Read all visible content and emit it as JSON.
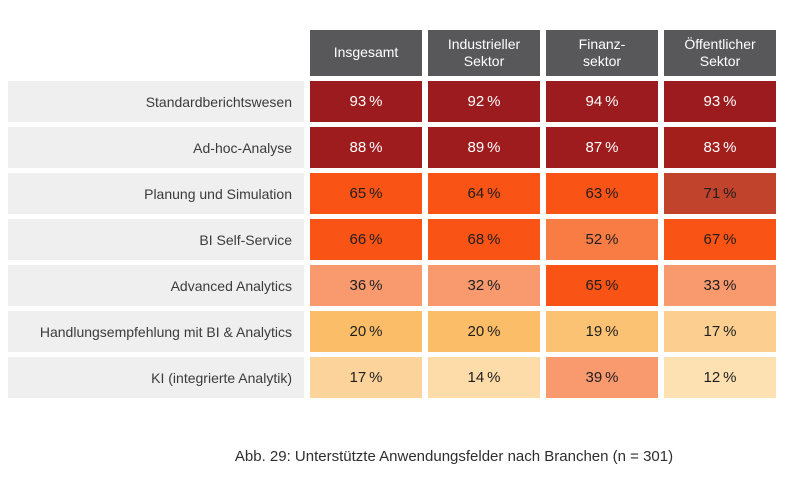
{
  "chart_data": {
    "type": "heatmap",
    "title": "",
    "caption": "Abb. 29: Unterstützte Anwendungsfelder nach Branchen (n = 301)",
    "unit": "%",
    "legend": "none",
    "columns": [
      "Insgesamt",
      "Industrieller Sektor",
      "Finanzsektor",
      "Öffentlicher Sektor"
    ],
    "header_display": [
      "Insgesamt",
      "Industrieller\nSektor",
      "Finanz-\nsektor",
      "Öffentlicher\nSektor"
    ],
    "rows": [
      {
        "label": "Standardberichtswesen",
        "values": [
          93,
          92,
          94,
          93
        ],
        "colors": [
          "#9b1b1e",
          "#9b1b1e",
          "#9b1b1e",
          "#9b1b1e"
        ],
        "text_color": "#ffffff"
      },
      {
        "label": "Ad-hoc-Analyse",
        "values": [
          88,
          89,
          87,
          83
        ],
        "colors": [
          "#9e1c1d",
          "#9e1c1d",
          "#9e1c1d",
          "#a21f1c"
        ],
        "text_color": "#ffffff"
      },
      {
        "label": "Planung und Simulation",
        "values": [
          65,
          64,
          63,
          71
        ],
        "colors": [
          "#f95316",
          "#f95316",
          "#f95316",
          "#c2432c"
        ],
        "text_color": "#1e1e1e"
      },
      {
        "label": "BI Self-Service",
        "values": [
          66,
          68,
          52,
          67
        ],
        "colors": [
          "#f95316",
          "#f95316",
          "#f87c44",
          "#f95316"
        ],
        "text_color": "#1e1e1e"
      },
      {
        "label": "Advanced Analytics",
        "values": [
          36,
          32,
          65,
          33
        ],
        "colors": [
          "#f89a6e",
          "#f89a6e",
          "#f95316",
          "#f89a6e"
        ],
        "text_color": "#1e1e1e"
      },
      {
        "label": "Handlungsempfehlung mit BI & Analytics",
        "values": [
          20,
          20,
          19,
          17
        ],
        "colors": [
          "#fbbd68",
          "#fbbd68",
          "#fbc274",
          "#fccf90"
        ],
        "text_color": "#1e1e1e"
      },
      {
        "label": "KI (integrierte Analytik)",
        "values": [
          17,
          14,
          39,
          12
        ],
        "colors": [
          "#fcd49b",
          "#fddca9",
          "#f89a6e",
          "#fde1b3"
        ],
        "text_color": "#1e1e1e"
      }
    ],
    "style": {
      "header_bg": "#58585b",
      "header_fg": "#ffffff",
      "label_bg": "#efefef",
      "label_fg": "#3b3b3b",
      "high_value_bg": "#9b1b1e",
      "mid_value_bg": "#f95316",
      "low_value_bg": "#fde1b3"
    }
  }
}
